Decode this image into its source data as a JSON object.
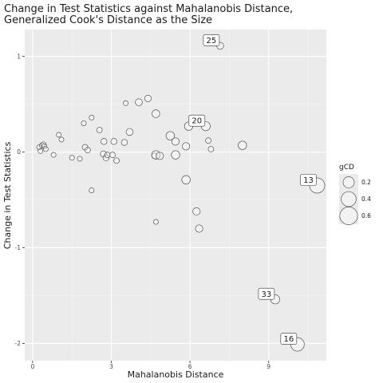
{
  "chart_data": {
    "type": "scatter",
    "title": "Change in Test Statistics against Mahalanobis Distance,",
    "subtitle": "Generalized Cook's Distance as the Size",
    "xlabel": "Mahalanobis Distance",
    "ylabel": "Change in Test Statistics",
    "xlim": [
      -0.3,
      11.2
    ],
    "ylim": [
      -2.18,
      1.28
    ],
    "x_ticks": [
      0,
      3,
      6,
      9
    ],
    "x_tick_labels": [
      "0",
      "3",
      "6",
      "9"
    ],
    "y_ticks": [
      1,
      0,
      -1,
      -2
    ],
    "y_tick_labels": [
      "1",
      "0",
      "-1",
      "-2"
    ],
    "grid": true,
    "legend": {
      "title": "gCD",
      "entries": [
        {
          "label": "0.2",
          "value": 0.2
        },
        {
          "label": "0.4",
          "value": 0.4
        },
        {
          "label": "0.6",
          "value": 0.6
        }
      ],
      "placement": "right"
    },
    "size_range": [
      0.0,
      0.75
    ],
    "points": [
      {
        "x": 0.25,
        "y": 0.05,
        "size": 0.02
      },
      {
        "x": 0.3,
        "y": 0.01,
        "size": 0.02
      },
      {
        "x": 0.35,
        "y": 0.07,
        "size": 0.02
      },
      {
        "x": 0.42,
        "y": 0.08,
        "size": 0.02
      },
      {
        "x": 0.45,
        "y": 0.06,
        "size": 0.02
      },
      {
        "x": 0.5,
        "y": 0.03,
        "size": 0.02
      },
      {
        "x": 0.8,
        "y": -0.03,
        "size": 0.02
      },
      {
        "x": 1.0,
        "y": 0.18,
        "size": 0.02
      },
      {
        "x": 1.1,
        "y": 0.13,
        "size": 0.02
      },
      {
        "x": 1.5,
        "y": -0.06,
        "size": 0.02
      },
      {
        "x": 1.8,
        "y": -0.07,
        "size": 0.02
      },
      {
        "x": 1.95,
        "y": 0.3,
        "size": 0.02
      },
      {
        "x": 2.0,
        "y": 0.05,
        "size": 0.03
      },
      {
        "x": 2.1,
        "y": 0.02,
        "size": 0.03
      },
      {
        "x": 2.25,
        "y": 0.36,
        "size": 0.02
      },
      {
        "x": 2.25,
        "y": -0.4,
        "size": 0.02
      },
      {
        "x": 2.55,
        "y": 0.23,
        "size": 0.03
      },
      {
        "x": 2.7,
        "y": -0.02,
        "size": 0.04
      },
      {
        "x": 2.72,
        "y": 0.11,
        "size": 0.04
      },
      {
        "x": 2.8,
        "y": -0.06,
        "size": 0.04
      },
      {
        "x": 2.85,
        "y": -0.03,
        "size": 0.03
      },
      {
        "x": 3.05,
        "y": -0.03,
        "size": 0.03
      },
      {
        "x": 3.1,
        "y": 0.11,
        "size": 0.04
      },
      {
        "x": 3.2,
        "y": -0.09,
        "size": 0.03
      },
      {
        "x": 3.5,
        "y": 0.1,
        "size": 0.04
      },
      {
        "x": 3.55,
        "y": 0.51,
        "size": 0.02
      },
      {
        "x": 3.7,
        "y": 0.21,
        "size": 0.06
      },
      {
        "x": 4.05,
        "y": 0.52,
        "size": 0.06
      },
      {
        "x": 4.4,
        "y": 0.56,
        "size": 0.05
      },
      {
        "x": 4.7,
        "y": 0.4,
        "size": 0.08
      },
      {
        "x": 4.65,
        "y": -0.04,
        "size": 0.03
      },
      {
        "x": 4.7,
        "y": -0.03,
        "size": 0.1
      },
      {
        "x": 4.85,
        "y": -0.04,
        "size": 0.07
      },
      {
        "x": 4.7,
        "y": -0.73,
        "size": 0.02
      },
      {
        "x": 5.25,
        "y": 0.17,
        "size": 0.1
      },
      {
        "x": 5.45,
        "y": 0.11,
        "size": 0.07
      },
      {
        "x": 5.45,
        "y": -0.03,
        "size": 0.1
      },
      {
        "x": 5.85,
        "y": 0.06,
        "size": 0.07
      },
      {
        "x": 5.95,
        "y": 0.27,
        "size": 0.1
      },
      {
        "x": 5.85,
        "y": -0.29,
        "size": 0.1
      },
      {
        "x": 6.25,
        "y": -0.62,
        "size": 0.07
      },
      {
        "x": 6.35,
        "y": -0.8,
        "size": 0.07
      },
      {
        "x": 6.6,
        "y": 0.27,
        "size": 0.12
      },
      {
        "x": 6.7,
        "y": 0.12,
        "size": 0.03
      },
      {
        "x": 6.8,
        "y": 0.03,
        "size": 0.03
      },
      {
        "x": 7.15,
        "y": 1.11,
        "size": 0.06
      },
      {
        "x": 8.0,
        "y": 0.07,
        "size": 0.1
      },
      {
        "x": 9.25,
        "y": -1.54,
        "size": 0.12
      },
      {
        "x": 10.1,
        "y": -2.01,
        "size": 0.32
      },
      {
        "x": 10.85,
        "y": -0.35,
        "size": 0.42
      }
    ],
    "labels": [
      {
        "text": "25",
        "x": 7.15,
        "y": 1.11
      },
      {
        "text": "20",
        "x": 6.6,
        "y": 0.27
      },
      {
        "text": "13",
        "x": 10.85,
        "y": -0.35
      },
      {
        "text": "33",
        "x": 9.25,
        "y": -1.54
      },
      {
        "text": "16",
        "x": 10.1,
        "y": -2.01
      }
    ]
  }
}
